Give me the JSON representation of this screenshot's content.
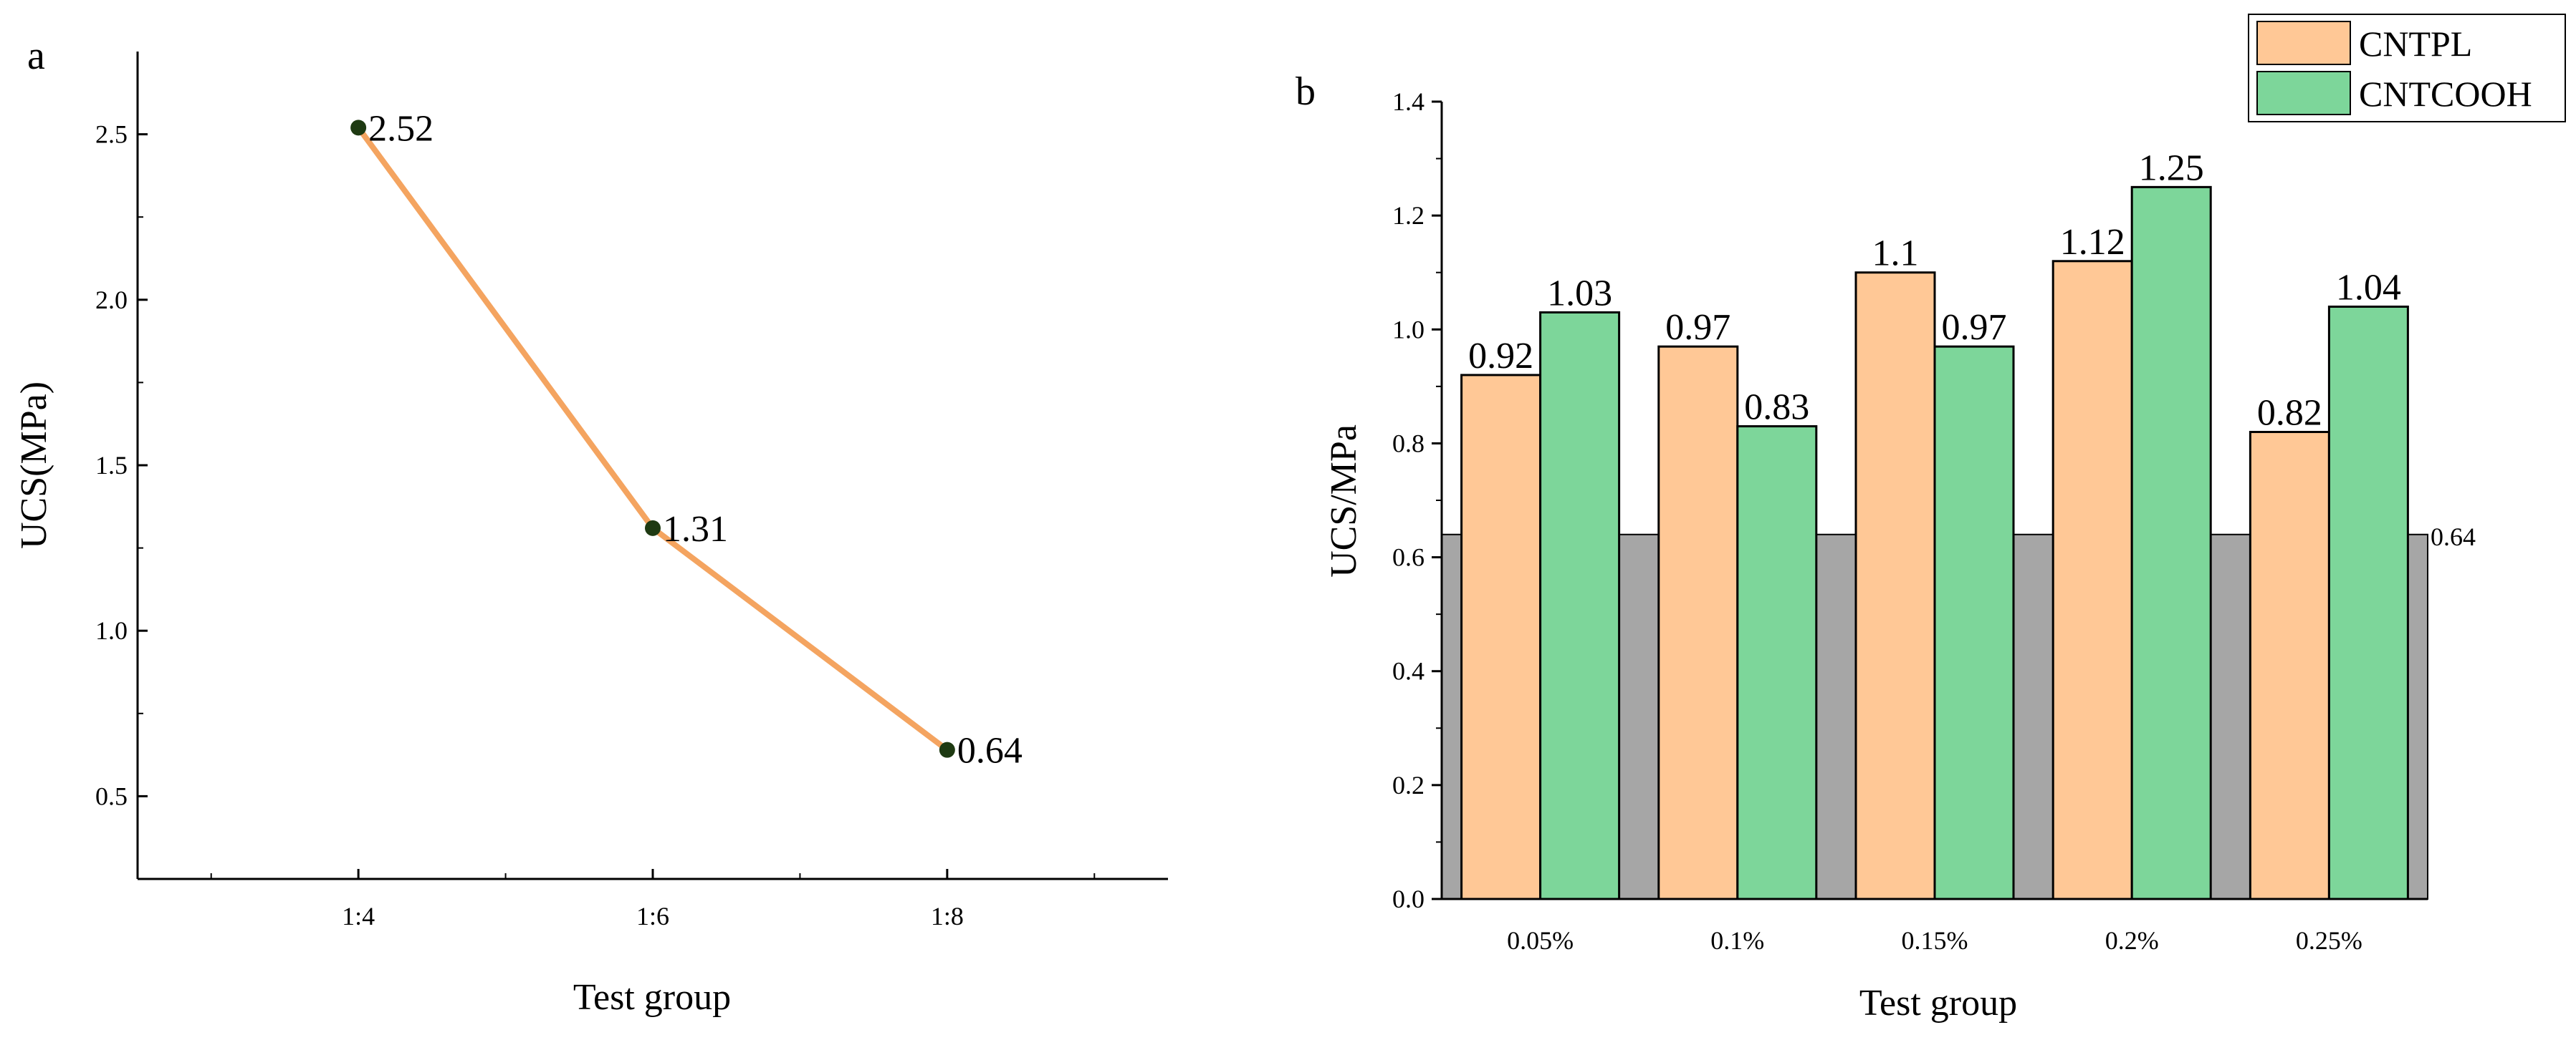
{
  "chart_data": [
    {
      "panel_label": "a",
      "type": "line",
      "categories": [
        "1:4",
        "1:6",
        "1:8"
      ],
      "values": [
        2.52,
        1.31,
        0.64
      ],
      "data_labels": [
        "2.52",
        "1.31",
        "0.64"
      ],
      "xlabel": "Test group",
      "ylabel": "UCS(MPa)",
      "ylim": [
        0.25,
        2.75
      ],
      "yticks": [
        0.5,
        1.0,
        1.5,
        2.0,
        2.5
      ],
      "ytick_labels": [
        "0.5",
        "1.0",
        "1.5",
        "2.0",
        "2.5"
      ],
      "grid": false,
      "colors": {
        "line": "#F4A460",
        "marker": "#1E3A12"
      }
    },
    {
      "panel_label": "b",
      "type": "bar",
      "categories": [
        "0.05%",
        "0.1%",
        "0.15%",
        "0.2%",
        "0.25%"
      ],
      "series": [
        {
          "name": "CNTPL",
          "values": [
            0.92,
            0.97,
            1.1,
            1.12,
            0.82
          ],
          "labels": [
            "0.92",
            "0.97",
            "1.1",
            "1.12",
            "0.82"
          ]
        },
        {
          "name": "CNTCOOH",
          "values": [
            1.03,
            0.83,
            0.97,
            1.25,
            1.04
          ],
          "labels": [
            "1.03",
            "0.83",
            "0.97",
            "1.25",
            "1.04"
          ]
        }
      ],
      "baseline": {
        "value": 0.64,
        "label": "0.64"
      },
      "xlabel": "Test group",
      "ylabel": "UCS/MPa",
      "ylim": [
        0,
        1.4
      ],
      "yticks": [
        0,
        0.2,
        0.4,
        0.6,
        0.8,
        1.0,
        1.2,
        1.4
      ],
      "ytick_labels": [
        "0.0",
        "0.2",
        "0.4",
        "0.6",
        "0.8",
        "1.0",
        "1.2",
        "1.4"
      ],
      "legend_position": "top-right",
      "grid": false,
      "colors": {
        "CNTPL": "#FFC896",
        "CNTCOOH": "#7DD69A",
        "baseline": "#A6A6A6"
      }
    }
  ]
}
